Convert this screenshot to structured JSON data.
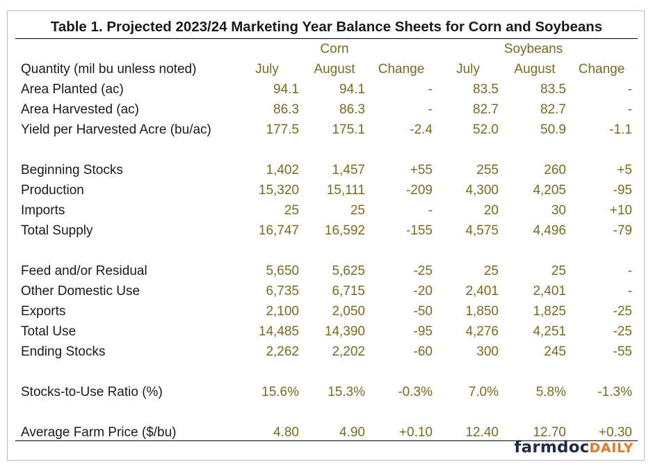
{
  "title": "Table 1. Projected 2023/24 Marketing Year Balance Sheets for Corn and Soybeans",
  "header": {
    "corn": "Corn",
    "soybeans": "Soybeans",
    "quantity": "Quantity (mil bu unless noted)",
    "columns": [
      "July",
      "August",
      "Change",
      "July",
      "August",
      "Change"
    ]
  },
  "rows": [
    {
      "label": "Area Planted (ac)",
      "values": [
        "94.1",
        "94.1",
        "-",
        "83.5",
        "83.5",
        "-"
      ]
    },
    {
      "label": "Area Harvested (ac)",
      "values": [
        "86.3",
        "86.3",
        "-",
        "82.7",
        "82.7",
        "-"
      ]
    },
    {
      "label": "Yield per Harvested Acre (bu/ac)",
      "values": [
        "177.5",
        "175.1",
        "-2.4",
        "52.0",
        "50.9",
        "-1.1"
      ]
    },
    {
      "label": "Beginning Stocks",
      "values": [
        "1,402",
        "1,457",
        "+55",
        "255",
        "260",
        "+5"
      ]
    },
    {
      "label": "Production",
      "values": [
        "15,320",
        "15,111",
        "-209",
        "4,300",
        "4,205",
        "-95"
      ]
    },
    {
      "label": "Imports",
      "values": [
        "25",
        "25",
        "-",
        "20",
        "30",
        "+10"
      ]
    },
    {
      "label": "Total Supply",
      "values": [
        "16,747",
        "16,592",
        "-155",
        "4,575",
        "4,496",
        "-79"
      ]
    },
    {
      "label": "Feed and/or Residual",
      "values": [
        "5,650",
        "5,625",
        "-25",
        "25",
        "25",
        "-"
      ]
    },
    {
      "label": "Other Domestic Use",
      "values": [
        "6,735",
        "6,715",
        "-20",
        "2,401",
        "2,401",
        "-"
      ]
    },
    {
      "label": "Exports",
      "values": [
        "2,100",
        "2,050",
        "-50",
        "1,850",
        "1,825",
        "-25"
      ]
    },
    {
      "label": "Total Use",
      "values": [
        "14,485",
        "14,390",
        "-95",
        "4,276",
        "4,251",
        "-25"
      ]
    },
    {
      "label": "Ending Stocks",
      "values": [
        "2,262",
        "2,202",
        "-60",
        "300",
        "245",
        "-55"
      ]
    },
    {
      "label": "Stocks-to-Use Ratio (%)",
      "values": [
        "15.6%",
        "15.3%",
        "-0.3%",
        "7.0%",
        "5.8%",
        "-1.3%"
      ]
    },
    {
      "label": "Average Farm Price ($/bu)",
      "values": [
        "4.80",
        "4.90",
        "+0.10",
        "12.40",
        "12.70",
        "+0.30"
      ]
    }
  ],
  "logo": {
    "part1": "farmdoc",
    "part2": "DAILY"
  },
  "colors": {
    "value": "#7a6a1e",
    "logo_navy": "#1f2a44",
    "logo_orange": "#e87722"
  }
}
